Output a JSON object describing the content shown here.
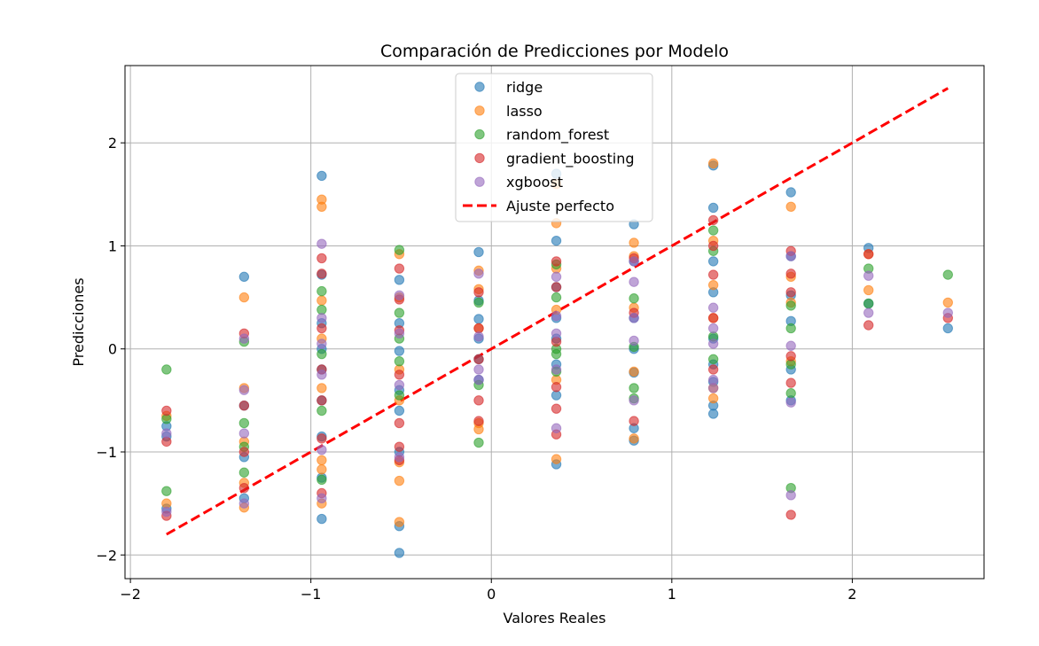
{
  "chart_data": {
    "type": "scatter",
    "title": "Comparación de Predicciones por Modelo",
    "xlabel": "Valores Reales",
    "ylabel": "Predicciones",
    "xlim": [
      -2.03,
      2.73
    ],
    "ylim": [
      -2.23,
      2.75
    ],
    "xticks": [
      -2,
      -1,
      0,
      1,
      2
    ],
    "yticks": [
      -2,
      -1,
      0,
      1,
      2
    ],
    "grid": true,
    "legend_position": "upper center",
    "reference_line": {
      "name": "Ajuste perfecto",
      "color": "#ff0000",
      "style": "dashed",
      "x": [
        -1.8,
        2.53
      ],
      "y": [
        -1.8,
        2.53
      ]
    },
    "series": [
      {
        "name": "ridge",
        "color": "#1f77b4",
        "points": [
          [
            -1.8,
            -0.75
          ],
          [
            -1.8,
            -0.85
          ],
          [
            -1.8,
            -1.55
          ],
          [
            -1.37,
            0.7
          ],
          [
            -1.37,
            -0.55
          ],
          [
            -1.37,
            -1.05
          ],
          [
            -1.37,
            -1.45
          ],
          [
            -0.94,
            1.68
          ],
          [
            -0.94,
            0.72
          ],
          [
            -0.94,
            0.25
          ],
          [
            -0.94,
            0.0
          ],
          [
            -0.94,
            -0.2
          ],
          [
            -0.94,
            -0.5
          ],
          [
            -0.94,
            -0.85
          ],
          [
            -0.94,
            -1.25
          ],
          [
            -0.94,
            -1.65
          ],
          [
            -0.51,
            0.67
          ],
          [
            -0.51,
            0.25
          ],
          [
            -0.51,
            -0.02
          ],
          [
            -0.51,
            -0.4
          ],
          [
            -0.51,
            -0.6
          ],
          [
            -0.51,
            -1.0
          ],
          [
            -0.51,
            -1.72
          ],
          [
            -0.51,
            -1.98
          ],
          [
            -0.07,
            0.94
          ],
          [
            -0.07,
            0.47
          ],
          [
            -0.07,
            0.29
          ],
          [
            -0.07,
            0.1
          ],
          [
            -0.07,
            -0.1
          ],
          [
            -0.07,
            -0.3
          ],
          [
            0.36,
            1.7
          ],
          [
            0.36,
            1.05
          ],
          [
            0.36,
            0.6
          ],
          [
            0.36,
            0.3
          ],
          [
            0.36,
            0.1
          ],
          [
            0.36,
            -0.15
          ],
          [
            0.36,
            -0.45
          ],
          [
            0.36,
            -1.12
          ],
          [
            0.79,
            1.21
          ],
          [
            0.79,
            0.85
          ],
          [
            0.79,
            0.3
          ],
          [
            0.79,
            0.0
          ],
          [
            0.79,
            -0.23
          ],
          [
            0.79,
            -0.77
          ],
          [
            0.79,
            -0.89
          ],
          [
            1.23,
            1.78
          ],
          [
            1.23,
            1.37
          ],
          [
            1.23,
            0.85
          ],
          [
            1.23,
            0.55
          ],
          [
            1.23,
            0.1
          ],
          [
            1.23,
            -0.15
          ],
          [
            1.23,
            -0.32
          ],
          [
            1.23,
            -0.55
          ],
          [
            1.23,
            -0.63
          ],
          [
            1.66,
            1.52
          ],
          [
            1.66,
            0.9
          ],
          [
            1.66,
            0.52
          ],
          [
            1.66,
            0.27
          ],
          [
            1.66,
            -0.2
          ],
          [
            1.66,
            -0.5
          ],
          [
            2.09,
            0.98
          ],
          [
            2.09,
            0.44
          ],
          [
            2.53,
            0.2
          ]
        ]
      },
      {
        "name": "lasso",
        "color": "#ff7f0e",
        "points": [
          [
            -1.8,
            -0.65
          ],
          [
            -1.8,
            -1.5
          ],
          [
            -1.37,
            0.5
          ],
          [
            -1.37,
            -0.38
          ],
          [
            -1.37,
            -0.9
          ],
          [
            -1.37,
            -1.3
          ],
          [
            -1.37,
            -1.54
          ],
          [
            -0.94,
            1.45
          ],
          [
            -0.94,
            1.38
          ],
          [
            -0.94,
            0.47
          ],
          [
            -0.94,
            0.1
          ],
          [
            -0.94,
            -0.38
          ],
          [
            -0.94,
            -1.08
          ],
          [
            -0.94,
            -1.17
          ],
          [
            -0.94,
            -1.5
          ],
          [
            -0.51,
            0.92
          ],
          [
            -0.51,
            0.5
          ],
          [
            -0.51,
            -0.2
          ],
          [
            -0.51,
            -0.5
          ],
          [
            -0.51,
            -1.1
          ],
          [
            -0.51,
            -1.28
          ],
          [
            -0.51,
            -1.68
          ],
          [
            -0.07,
            0.76
          ],
          [
            -0.07,
            0.58
          ],
          [
            -0.07,
            0.2
          ],
          [
            -0.07,
            -0.72
          ],
          [
            -0.07,
            -0.78
          ],
          [
            0.36,
            1.6
          ],
          [
            0.36,
            1.22
          ],
          [
            0.36,
            0.78
          ],
          [
            0.36,
            0.38
          ],
          [
            0.36,
            -0.3
          ],
          [
            0.36,
            -1.07
          ],
          [
            0.79,
            1.03
          ],
          [
            0.79,
            0.9
          ],
          [
            0.79,
            0.4
          ],
          [
            0.79,
            -0.22
          ],
          [
            0.79,
            -0.87
          ],
          [
            1.23,
            1.8
          ],
          [
            1.23,
            1.05
          ],
          [
            1.23,
            0.62
          ],
          [
            1.23,
            0.3
          ],
          [
            1.23,
            -0.38
          ],
          [
            1.23,
            -0.48
          ],
          [
            1.66,
            1.38
          ],
          [
            1.66,
            0.7
          ],
          [
            1.66,
            0.45
          ],
          [
            1.66,
            -0.12
          ],
          [
            2.09,
            0.92
          ],
          [
            2.09,
            0.57
          ],
          [
            2.53,
            0.45
          ]
        ]
      },
      {
        "name": "random_forest",
        "color": "#2ca02c",
        "points": [
          [
            -1.8,
            -0.2
          ],
          [
            -1.8,
            -0.68
          ],
          [
            -1.8,
            -1.38
          ],
          [
            -1.37,
            0.07
          ],
          [
            -1.37,
            -0.72
          ],
          [
            -1.37,
            -0.95
          ],
          [
            -1.37,
            -1.2
          ],
          [
            -0.94,
            0.56
          ],
          [
            -0.94,
            0.38
          ],
          [
            -0.94,
            -0.05
          ],
          [
            -0.94,
            -0.6
          ],
          [
            -0.94,
            -1.27
          ],
          [
            -0.51,
            0.96
          ],
          [
            -0.51,
            0.35
          ],
          [
            -0.51,
            0.1
          ],
          [
            -0.51,
            -0.12
          ],
          [
            -0.51,
            -0.45
          ],
          [
            -0.07,
            0.45
          ],
          [
            -0.07,
            -0.35
          ],
          [
            -0.07,
            -0.91
          ],
          [
            0.36,
            0.82
          ],
          [
            0.36,
            0.5
          ],
          [
            0.36,
            0.0
          ],
          [
            0.36,
            -0.05
          ],
          [
            0.36,
            -0.22
          ],
          [
            0.79,
            0.49
          ],
          [
            0.79,
            0.02
          ],
          [
            0.79,
            -0.38
          ],
          [
            0.79,
            -0.48
          ],
          [
            1.23,
            1.15
          ],
          [
            1.23,
            0.95
          ],
          [
            1.23,
            0.12
          ],
          [
            1.23,
            -0.1
          ],
          [
            1.66,
            0.42
          ],
          [
            1.66,
            0.2
          ],
          [
            1.66,
            -0.15
          ],
          [
            1.66,
            -0.43
          ],
          [
            1.66,
            -1.35
          ],
          [
            2.09,
            0.78
          ],
          [
            2.09,
            0.44
          ],
          [
            2.53,
            0.72
          ]
        ]
      },
      {
        "name": "gradient_boosting",
        "color": "#d62728",
        "points": [
          [
            -1.8,
            -0.6
          ],
          [
            -1.8,
            -0.9
          ],
          [
            -1.8,
            -1.62
          ],
          [
            -1.37,
            0.15
          ],
          [
            -1.37,
            -0.55
          ],
          [
            -1.37,
            -1.0
          ],
          [
            -1.37,
            -1.35
          ],
          [
            -0.94,
            0.88
          ],
          [
            -0.94,
            0.73
          ],
          [
            -0.94,
            0.2
          ],
          [
            -0.94,
            -0.2
          ],
          [
            -0.94,
            -0.5
          ],
          [
            -0.94,
            -0.87
          ],
          [
            -0.94,
            -1.4
          ],
          [
            -0.51,
            0.78
          ],
          [
            -0.51,
            0.48
          ],
          [
            -0.51,
            0.18
          ],
          [
            -0.51,
            -0.25
          ],
          [
            -0.51,
            -0.72
          ],
          [
            -0.51,
            -0.95
          ],
          [
            -0.51,
            -1.08
          ],
          [
            -0.07,
            0.55
          ],
          [
            -0.07,
            0.2
          ],
          [
            -0.07,
            -0.1
          ],
          [
            -0.07,
            -0.5
          ],
          [
            -0.07,
            -0.7
          ],
          [
            0.36,
            0.85
          ],
          [
            0.36,
            0.6
          ],
          [
            0.36,
            0.07
          ],
          [
            0.36,
            -0.37
          ],
          [
            0.36,
            -0.58
          ],
          [
            0.36,
            -0.83
          ],
          [
            0.79,
            0.88
          ],
          [
            0.79,
            0.35
          ],
          [
            0.79,
            -0.7
          ],
          [
            1.23,
            1.25
          ],
          [
            1.23,
            1.0
          ],
          [
            1.23,
            0.72
          ],
          [
            1.23,
            0.3
          ],
          [
            1.23,
            -0.2
          ],
          [
            1.66,
            0.95
          ],
          [
            1.66,
            0.73
          ],
          [
            1.66,
            0.55
          ],
          [
            1.66,
            -0.07
          ],
          [
            1.66,
            -0.33
          ],
          [
            1.66,
            -1.61
          ],
          [
            2.09,
            0.92
          ],
          [
            2.09,
            0.23
          ],
          [
            2.53,
            0.3
          ]
        ]
      },
      {
        "name": "xgboost",
        "color": "#9467bd",
        "points": [
          [
            -1.8,
            -0.82
          ],
          [
            -1.8,
            -1.58
          ],
          [
            -1.37,
            0.1
          ],
          [
            -1.37,
            -0.4
          ],
          [
            -1.37,
            -0.82
          ],
          [
            -1.37,
            -1.5
          ],
          [
            -0.94,
            1.02
          ],
          [
            -0.94,
            0.3
          ],
          [
            -0.94,
            0.05
          ],
          [
            -0.94,
            -0.25
          ],
          [
            -0.94,
            -0.98
          ],
          [
            -0.94,
            -1.45
          ],
          [
            -0.51,
            0.52
          ],
          [
            -0.51,
            0.15
          ],
          [
            -0.51,
            -0.35
          ],
          [
            -0.51,
            -1.05
          ],
          [
            -0.07,
            0.73
          ],
          [
            -0.07,
            0.12
          ],
          [
            -0.07,
            -0.2
          ],
          [
            -0.07,
            -0.3
          ],
          [
            0.36,
            0.7
          ],
          [
            0.36,
            0.32
          ],
          [
            0.36,
            0.15
          ],
          [
            0.36,
            -0.2
          ],
          [
            0.36,
            -0.77
          ],
          [
            0.79,
            0.85
          ],
          [
            0.79,
            0.65
          ],
          [
            0.79,
            0.3
          ],
          [
            0.79,
            0.08
          ],
          [
            0.79,
            -0.5
          ],
          [
            1.23,
            0.4
          ],
          [
            1.23,
            0.2
          ],
          [
            1.23,
            0.05
          ],
          [
            1.23,
            -0.3
          ],
          [
            1.23,
            -0.38
          ],
          [
            1.66,
            0.9
          ],
          [
            1.66,
            0.03
          ],
          [
            1.66,
            -0.52
          ],
          [
            1.66,
            -1.42
          ],
          [
            2.09,
            0.71
          ],
          [
            2.09,
            0.35
          ],
          [
            2.53,
            0.35
          ]
        ]
      }
    ]
  }
}
